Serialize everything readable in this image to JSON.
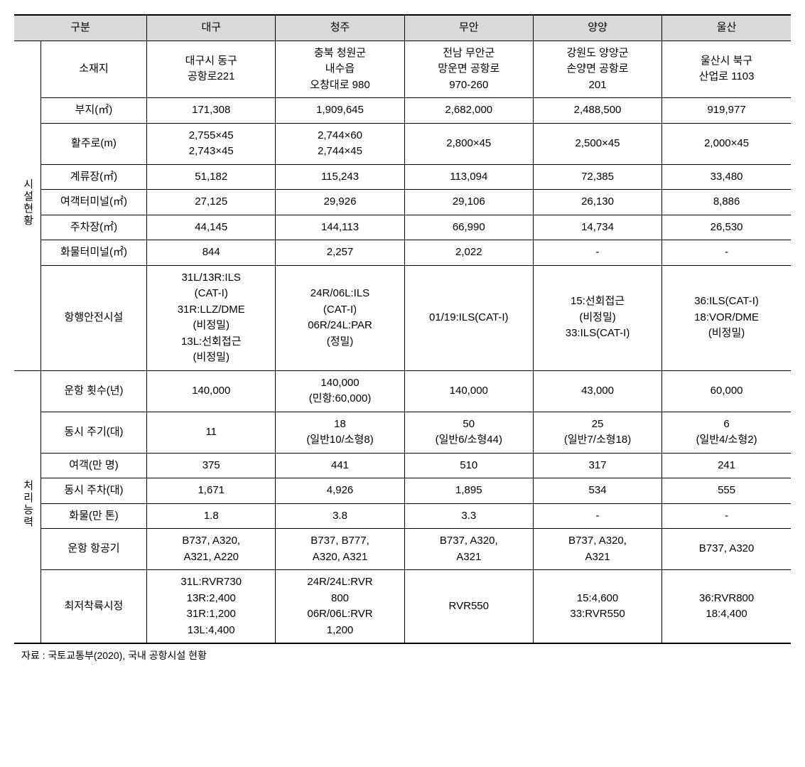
{
  "header": {
    "category_label": "구분",
    "airports": [
      "대구",
      "청주",
      "무안",
      "양양",
      "울산"
    ]
  },
  "groups": {
    "facility": "시설현황",
    "capacity": "처리능력"
  },
  "facility_rows": {
    "location": {
      "label": "소재지",
      "values": [
        "대구시 동구\n공항로221",
        "충북 청원군\n내수읍\n오창대로 980",
        "전남 무안군\n망운면 공항로\n970-260",
        "강원도 양양군\n손양면 공항로\n201",
        "울산시 북구\n산업로 1103"
      ]
    },
    "site_area": {
      "label": "부지(㎡)",
      "values": [
        "171,308",
        "1,909,645",
        "2,682,000",
        "2,488,500",
        "919,977"
      ]
    },
    "runway": {
      "label": "활주로(m)",
      "values": [
        "2,755×45\n2,743×45",
        "2,744×60\n2,744×45",
        "2,800×45",
        "2,500×45",
        "2,000×45"
      ]
    },
    "apron": {
      "label": "계류장(㎡)",
      "values": [
        "51,182",
        "115,243",
        "113,094",
        "72,385",
        "33,480"
      ]
    },
    "passenger_terminal": {
      "label": "여객터미널(㎡)",
      "values": [
        "27,125",
        "29,926",
        "29,106",
        "26,130",
        "8,886"
      ]
    },
    "parking": {
      "label": "주차장(㎡)",
      "values": [
        "44,145",
        "144,113",
        "66,990",
        "14,734",
        "26,530"
      ]
    },
    "cargo_terminal": {
      "label": "화물터미널(㎡)",
      "values": [
        "844",
        "2,257",
        "2,022",
        "-",
        "-"
      ]
    },
    "nav_safety": {
      "label": "항행안전시설",
      "values": [
        "31L/13R:ILS\n(CAT-I)\n31R:LLZ/DME\n(비정밀)\n13L:선회접근\n(비정밀)",
        "24R/06L:ILS\n(CAT-I)\n06R/24L:PAR\n(정밀)",
        "01/19:ILS(CAT-I)",
        "15:선회접근\n(비정밀)\n33:ILS(CAT-I)",
        "36:ILS(CAT-I)\n18:VOR/DME\n(비정밀)"
      ]
    }
  },
  "capacity_rows": {
    "flights": {
      "label": "운항 횟수(년)",
      "values": [
        "140,000",
        "140,000\n(민항:60,000)",
        "140,000",
        "43,000",
        "60,000"
      ]
    },
    "simultaneous_parking_aircraft": {
      "label": "동시 주기(대)",
      "values": [
        "11",
        "18\n(일반10/소형8)",
        "50\n(일반6/소형44)",
        "25\n(일반7/소형18)",
        "6\n(일반4/소형2)"
      ]
    },
    "passengers": {
      "label": "여객(만 명)",
      "values": [
        "375",
        "441",
        "510",
        "317",
        "241"
      ]
    },
    "simultaneous_car_parking": {
      "label": "동시 주차(대)",
      "values": [
        "1,671",
        "4,926",
        "1,895",
        "534",
        "555"
      ]
    },
    "cargo": {
      "label": "화물(만 톤)",
      "values": [
        "1.8",
        "3.8",
        "3.3",
        "-",
        "-"
      ]
    },
    "aircraft_types": {
      "label": "운항 항공기",
      "values": [
        "B737, A320,\nA321, A220",
        "B737, B777,\nA320, A321",
        "B737, A320,\nA321",
        "B737, A320,\nA321",
        "B737, A320"
      ]
    },
    "min_landing": {
      "label": "최저착륙시정",
      "values": [
        "31L:RVR730\n13R:2,400\n31R:1,200\n13L:4,400",
        "24R/24L:RVR\n800\n06R/06L:RVR\n1,200",
        "RVR550",
        "15:4,600\n33:RVR550",
        "36:RVR800\n18:4,400"
      ]
    }
  },
  "source": "자료 : 국토교통부(2020), 국내 공항시설 현황",
  "styling": {
    "header_bg": "#d9d9d9",
    "border_color": "#000000",
    "outer_border_width": 2,
    "inner_border_width": 1,
    "font_size_pt": 11,
    "background_color": "#ffffff"
  }
}
